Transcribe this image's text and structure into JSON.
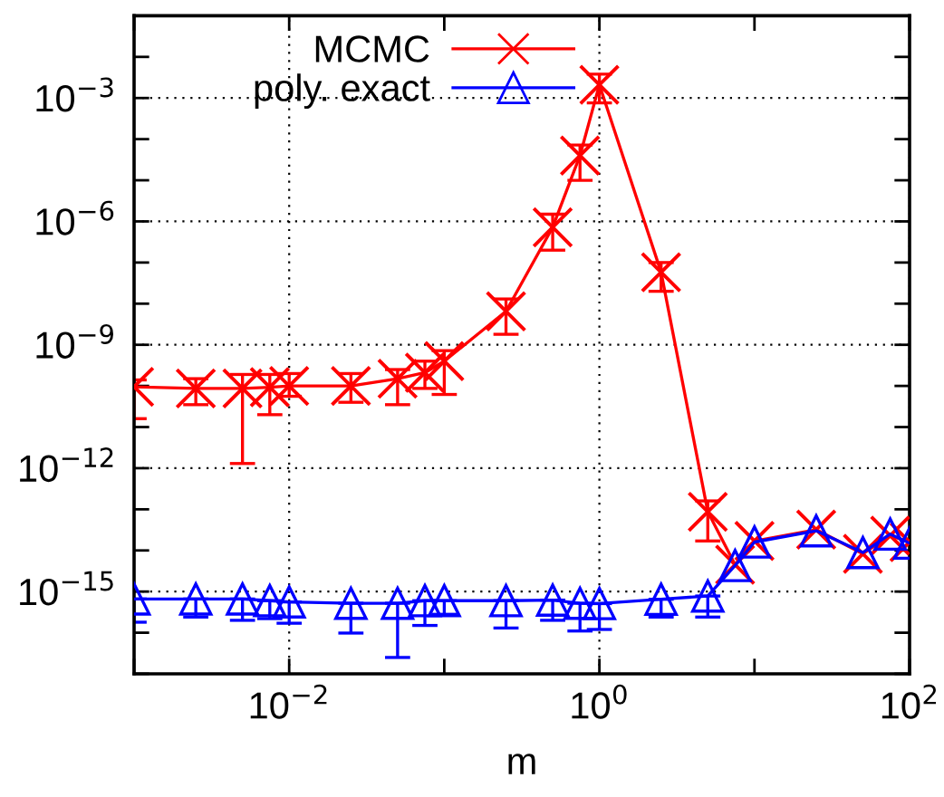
{
  "chart_data": {
    "type": "line",
    "xlabel": "m",
    "log": "xy",
    "grid": true,
    "legend": "top",
    "xlim": [
      0.001,
      100
    ],
    "ylim": [
      1e-17,
      0.1
    ],
    "xticks": [
      {
        "value": 0.001,
        "label": null
      },
      {
        "value": 0.01,
        "label": "10$^{−2}$"
      },
      {
        "value": 0.1,
        "label": null
      },
      {
        "value": 1,
        "label": "10$^{0}$"
      },
      {
        "value": 10,
        "label": null
      },
      {
        "value": 100,
        "label": "10$^{2}$"
      }
    ],
    "yticks": [
      {
        "value": 1e-17,
        "label": null
      },
      {
        "value": 1e-16,
        "label": null
      },
      {
        "value": 1e-15,
        "label": "10$^{−15}$"
      },
      {
        "value": 1e-14,
        "label": null
      },
      {
        "value": 1e-13,
        "label": null
      },
      {
        "value": 1e-12,
        "label": "10$^{−12}$"
      },
      {
        "value": 1e-11,
        "label": null
      },
      {
        "value": 1e-10,
        "label": null
      },
      {
        "value": 1e-09,
        "label": "10$^{−9}$"
      },
      {
        "value": 1e-08,
        "label": null
      },
      {
        "value": 1e-07,
        "label": null
      },
      {
        "value": 1e-06,
        "label": "10$^{−6}$"
      },
      {
        "value": 1e-05,
        "label": null
      },
      {
        "value": 0.0001,
        "label": null
      },
      {
        "value": 0.001,
        "label": "10$^{−3}$"
      },
      {
        "value": 0.01,
        "label": null
      },
      {
        "value": 0.1,
        "label": null
      }
    ],
    "x": [
      0.001,
      0.0025,
      0.005,
      0.0075,
      0.01,
      0.025,
      0.05,
      0.075,
      0.1,
      0.25,
      0.5,
      0.75,
      1,
      2.5,
      5,
      7.5,
      10,
      25,
      50,
      75,
      100
    ],
    "series": [
      {
        "name": "MCMC",
        "color": "#ff0000",
        "marker": "cross",
        "values": [
          9.5e-11,
          8.7e-11,
          8.7e-11,
          9.3e-11,
          1e-10,
          1e-10,
          1.5e-10,
          2.1e-10,
          4e-10,
          6.5e-09,
          7.2e-07,
          4e-05,
          0.0021,
          5.8e-08,
          8.7e-14,
          4.5e-15,
          1.7e-14,
          3.2e-14,
          8.3e-15,
          2.3e-14,
          1.6e-14
        ],
        "errors": [
          [
            1.6e-11,
            1.4e-10
          ],
          [
            3.5e-11,
            1.5e-10
          ],
          [
            1.3e-12,
            1.9e-10
          ],
          [
            2e-11,
            1.9e-10
          ],
          [
            5.6e-11,
            2e-10
          ],
          [
            4e-11,
            2e-10
          ],
          [
            3.5e-11,
            2.5e-10
          ],
          [
            8.7e-11,
            4e-10
          ],
          [
            6.2e-11,
            7.2e-10
          ],
          [
            1.8e-09,
            1.3e-08
          ],
          [
            2e-07,
            1.5e-06
          ],
          [
            1e-05,
            7.2e-05
          ],
          [
            0.00076,
            0.0038
          ],
          [
            2e-08,
            1e-07
          ],
          [
            1.7e-14,
            1.6e-13
          ],
          null,
          null,
          null,
          null,
          null,
          null
        ]
      },
      {
        "name": "poly. exact",
        "color": "#0000ff",
        "marker": "triangle",
        "values": [
          6.6e-16,
          6.6e-16,
          6.6e-16,
          6e-16,
          5.6e-16,
          5.2e-16,
          5.2e-16,
          6e-16,
          6e-16,
          6e-16,
          6.2e-16,
          5.2e-16,
          5.1e-16,
          6.5e-16,
          7.8e-16,
          4.3e-15,
          1.6e-14,
          3e-14,
          8.9e-15,
          2.5e-14,
          1.5e-14
        ],
        "errors": [
          [
            1.8e-16,
            6.6e-16
          ],
          [
            2.4e-16,
            6.6e-16
          ],
          [
            2e-16,
            6.6e-16
          ],
          [
            2.2e-16,
            6e-16
          ],
          [
            1.7e-16,
            5.6e-16
          ],
          [
            9.8e-17,
            5.2e-16
          ],
          [
            2.5e-17,
            5.2e-16
          ],
          [
            1.5e-16,
            6e-16
          ],
          [
            2.8e-16,
            6e-16
          ],
          [
            1.3e-16,
            6e-16
          ],
          [
            2e-16,
            6.2e-16
          ],
          [
            1.1e-16,
            5.2e-16
          ],
          [
            1.2e-16,
            5.1e-16
          ],
          [
            2.4e-16,
            6.5e-16
          ],
          [
            2.4e-16,
            7.8e-16
          ],
          null,
          null,
          null,
          null,
          null,
          null
        ]
      }
    ]
  }
}
